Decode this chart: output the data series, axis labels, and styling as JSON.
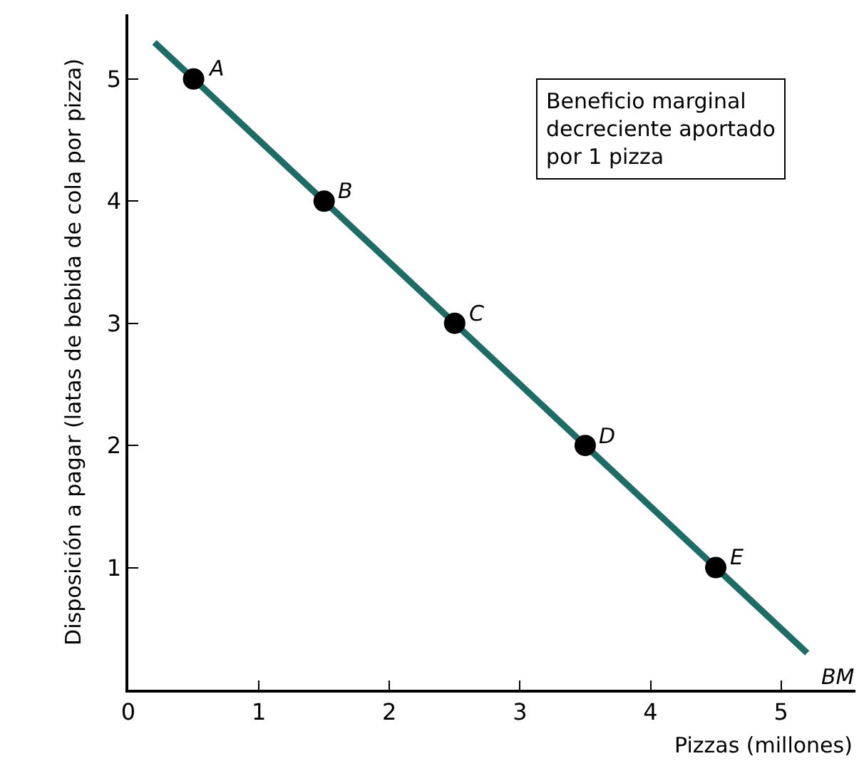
{
  "chart_data": {
    "type": "scatter",
    "xlabel": "Pizzas (millones)",
    "ylabel": "Disposición a pagar (latas de bebida de cola por pizza)",
    "series": [
      {
        "type": "line",
        "color": "#1f6b66",
        "x": [
          0.2,
          5.2
        ],
        "values": [
          5.3,
          0.3
        ],
        "marker": "none",
        "line_style": "solid"
      },
      {
        "color": "#000000",
        "x": [
          0.5,
          1.5,
          2.5,
          3.5,
          4.5
        ],
        "values": [
          5,
          4,
          3,
          2,
          1
        ],
        "marker": "circle"
      }
    ],
    "annotations": [
      {
        "text": "A",
        "x": 0.5,
        "y": 5
      },
      {
        "text": "B",
        "x": 1.5,
        "y": 4
      },
      {
        "text": "C",
        "x": 2.5,
        "y": 3
      },
      {
        "text": "D",
        "x": 3.5,
        "y": 2
      },
      {
        "text": "E",
        "x": 4.5,
        "y": 1
      },
      {
        "text": "BM",
        "x": 5.2,
        "y": 0.3
      },
      "Beneficio marginal\ndecreciente aportado\npor 1 pizza"
    ],
    "xlim": [
      0,
      5.57
    ],
    "ylim": [
      0,
      5.53
    ],
    "xticks": [
      0,
      1,
      2,
      3,
      4,
      5
    ],
    "yticks": [
      1,
      2,
      3,
      4,
      5
    ]
  }
}
